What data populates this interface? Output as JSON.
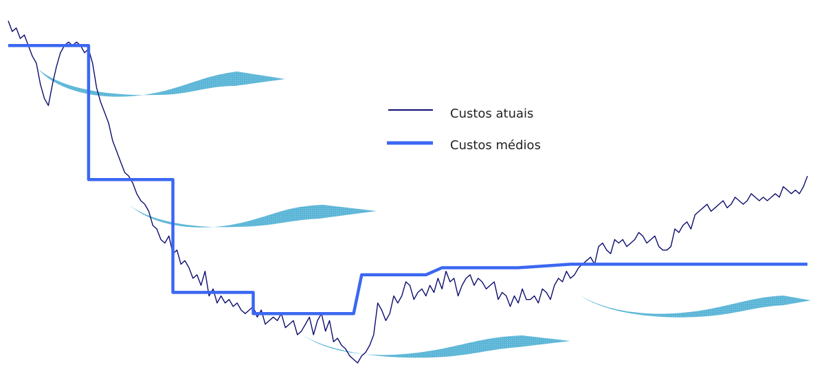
{
  "chart_data": {
    "type": "line",
    "title": "",
    "xlabel": "",
    "ylabel": "",
    "axes_shown": false,
    "grid": false,
    "legend_position": "upper-center",
    "legend": [
      {
        "label": "Custos atuais",
        "color": "#0b0b6e",
        "style": "thin"
      },
      {
        "label": "Custos médios",
        "color": "#3b67f2",
        "style": "thick"
      }
    ],
    "series": [
      {
        "name": "Custos atuais",
        "color": "#0b0b6e",
        "x": [
          0,
          1,
          2,
          3,
          4,
          5,
          6,
          7,
          8,
          9,
          10,
          11,
          12,
          13,
          14,
          15,
          16,
          17,
          18,
          19,
          20,
          21,
          22,
          23,
          24,
          25,
          26,
          27,
          28,
          29,
          30,
          31,
          32,
          33,
          34,
          35,
          36,
          37,
          38,
          39,
          40,
          41,
          42,
          43,
          44,
          45,
          46,
          47,
          48,
          49,
          50,
          51,
          52,
          53,
          54,
          55,
          56,
          57,
          58,
          59,
          60,
          61,
          62,
          63,
          64,
          65,
          66,
          67,
          68,
          69,
          70,
          71,
          72,
          73,
          74,
          75,
          76,
          77,
          78,
          79,
          80,
          81,
          82,
          83,
          84,
          85,
          86,
          87,
          88,
          89,
          90,
          91,
          92,
          93,
          94,
          95,
          96,
          97,
          98,
          99,
          100,
          101,
          102,
          103,
          104,
          105,
          106,
          107,
          108,
          109,
          110,
          111,
          112,
          113,
          114,
          115,
          116,
          117,
          118,
          119,
          120,
          121,
          122,
          123,
          124,
          125,
          126,
          127,
          128,
          129,
          130,
          131,
          132,
          133,
          134,
          135,
          136,
          137,
          138,
          139,
          140,
          141,
          142,
          143,
          144,
          145,
          146,
          147,
          148,
          149,
          150,
          151,
          152,
          153,
          154,
          155,
          156,
          157,
          158,
          159,
          160,
          161,
          162,
          163,
          164,
          165,
          166,
          167,
          168,
          169,
          170,
          171,
          172,
          173,
          174,
          175,
          176,
          177,
          178,
          179,
          180,
          181,
          182,
          183,
          184,
          185,
          186,
          187,
          188,
          189,
          190,
          191,
          192,
          193,
          194,
          195,
          196,
          197,
          198,
          199
        ],
        "values": [
          97,
          94,
          95,
          92,
          93,
          90,
          87,
          85,
          79,
          75,
          73,
          79,
          84,
          88,
          90,
          91,
          90,
          91,
          90,
          88,
          89,
          85,
          78,
          74,
          71,
          68,
          63,
          60,
          57,
          54,
          53,
          51,
          48,
          46,
          45,
          43,
          39,
          38,
          35,
          34,
          36,
          31,
          32,
          28,
          29,
          27,
          24,
          25,
          22,
          26,
          19,
          21,
          17,
          19,
          17,
          18,
          16,
          17,
          15,
          14,
          15,
          16,
          13,
          15,
          11,
          12,
          13,
          12,
          14,
          10,
          11,
          12,
          8,
          9,
          11,
          13,
          8,
          12,
          14,
          9,
          12,
          6,
          7,
          5,
          4,
          2,
          1,
          0,
          2,
          3,
          5,
          8,
          17,
          15,
          12,
          14,
          19,
          17,
          19,
          23,
          22,
          18,
          20,
          21,
          19,
          22,
          20,
          24,
          21,
          26,
          23,
          24,
          19,
          22,
          24,
          25,
          22,
          24,
          23,
          21,
          22,
          23,
          18,
          20,
          19,
          16,
          19,
          17,
          21,
          18,
          18,
          19,
          17,
          21,
          20,
          18,
          22,
          24,
          23,
          26,
          24,
          25,
          27,
          28,
          29,
          30,
          28,
          33,
          34,
          32,
          31,
          35,
          34,
          35,
          33,
          34,
          35,
          37,
          36,
          34,
          35,
          36,
          33,
          32,
          32,
          33,
          38,
          37,
          39,
          40,
          38,
          42,
          43,
          44,
          45,
          43,
          44,
          45,
          46,
          44,
          45,
          47,
          46,
          45,
          46,
          48,
          47,
          46,
          47,
          46,
          47,
          48,
          47,
          50,
          49,
          48,
          49,
          48,
          50,
          53
        ]
      },
      {
        "name": "Custos médios",
        "color": "#3b67f2",
        "x": [
          0,
          20,
          20,
          41,
          41,
          61,
          61,
          65,
          70,
          86,
          88,
          104,
          108,
          125,
          127,
          140,
          145,
          150,
          165,
          185,
          185,
          205,
          205,
          215,
          215,
          210
        ],
        "values": [
          90,
          90,
          52,
          52,
          20,
          20,
          14,
          14,
          14,
          14,
          25,
          25,
          27,
          27,
          27,
          28,
          28,
          28,
          28,
          28,
          28,
          28,
          28,
          28,
          28,
          28
        ]
      }
    ],
    "annotations": [
      {
        "type": "arrow",
        "label": ""
      },
      {
        "type": "arrow",
        "label": ""
      },
      {
        "type": "arrow",
        "label": ""
      },
      {
        "type": "arrow",
        "label": ""
      }
    ]
  }
}
